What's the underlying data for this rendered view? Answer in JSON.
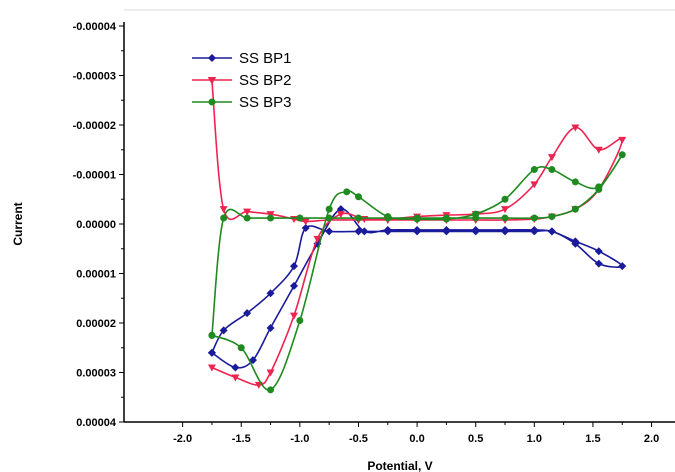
{
  "chart_data": {
    "type": "line",
    "xlabel": "Potential, V",
    "ylabel": "Current",
    "xlim": [
      -2.5,
      2.2
    ],
    "ylim": [
      -4e-05,
      4e-05
    ],
    "y_inverted": true,
    "x_ticks": [
      -2.0,
      -1.5,
      -1.0,
      -0.5,
      0.0,
      0.5,
      1.0,
      1.5,
      2.0
    ],
    "x_tick_labels": [
      "-2.0",
      "-1.5",
      "-1.0",
      "-0.5",
      "0.0",
      "0.5",
      "1.0",
      "1.5",
      "2.0"
    ],
    "y_ticks": [
      -4e-05,
      -3e-05,
      -2e-05,
      -1e-05,
      0.0,
      1e-05,
      2e-05,
      3e-05,
      4e-05
    ],
    "y_tick_labels": [
      "-0.00004",
      "-0.00003",
      "-0.00002",
      "-0.00001",
      "0.00000",
      "0.00001",
      "0.00002",
      "0.00003",
      "0.00004"
    ],
    "legend_position": "top-left",
    "grid": false,
    "series": [
      {
        "name": "SS BP1",
        "color": "#1a1a9c",
        "marker": "diamond",
        "x": [
          -1.75,
          -1.55,
          -1.4,
          -1.25,
          -1.05,
          -0.85,
          -0.65,
          -0.45,
          -0.25,
          0.0,
          0.25,
          0.5,
          0.75,
          1.0,
          1.15,
          1.35,
          1.55,
          1.75,
          1.55,
          1.35,
          1.15,
          1.0,
          0.75,
          0.5,
          0.25,
          0.0,
          -0.25,
          -0.5,
          -0.75,
          -0.95,
          -1.05,
          -1.25,
          -1.45,
          -1.65,
          -1.75
        ],
        "y": [
          2.6e-05,
          2.9e-05,
          2.75e-05,
          2.1e-05,
          1.25e-05,
          4e-06,
          -3e-06,
          1.5e-06,
          1.2e-06,
          1.2e-06,
          1.2e-06,
          1.2e-06,
          1.2e-06,
          1.2e-06,
          1.5e-06,
          3.5e-06,
          5.5e-06,
          8.5e-06,
          8e-06,
          4e-06,
          1.5e-06,
          1.5e-06,
          1.5e-06,
          1.5e-06,
          1.5e-06,
          1.5e-06,
          1.5e-06,
          1.5e-06,
          1.5e-06,
          8e-07,
          8.5e-06,
          1.4e-05,
          1.8e-05,
          2.15e-05,
          2.6e-05
        ]
      },
      {
        "name": "SS BP2",
        "color": "#ee2450",
        "marker": "triangle-down",
        "x": [
          -1.75,
          -1.55,
          -1.35,
          -1.25,
          -1.05,
          -0.85,
          -0.65,
          -0.45,
          -0.25,
          0.0,
          0.25,
          0.5,
          0.75,
          1.0,
          1.15,
          1.35,
          1.55,
          1.75,
          1.55,
          1.35,
          1.15,
          1.0,
          0.75,
          0.5,
          0.25,
          0.0,
          -0.25,
          -0.5,
          -0.75,
          -0.95,
          -1.05,
          -1.25,
          -1.45,
          -1.65,
          -1.75
        ],
        "y": [
          2.9e-05,
          3.1e-05,
          3.25e-05,
          3e-05,
          1.85e-05,
          3e-06,
          -2e-06,
          -1e-06,
          -1e-06,
          -1.5e-06,
          -1.8e-06,
          -2e-06,
          -3e-06,
          -8e-06,
          -1.35e-05,
          -1.95e-05,
          -1.5e-05,
          -1.7e-05,
          -7e-06,
          -3e-06,
          -1.5e-06,
          -1e-06,
          -8e-07,
          -8e-07,
          -8e-07,
          -8e-07,
          -8e-07,
          -8e-07,
          -8e-07,
          -5e-07,
          -1e-06,
          -2e-06,
          -2.5e-06,
          -3e-06,
          -2.9e-05
        ]
      },
      {
        "name": "SS BP3",
        "color": "#1f8a1f",
        "marker": "circle",
        "x": [
          -1.75,
          -1.5,
          -1.25,
          -1.0,
          -0.75,
          -0.6,
          -0.5,
          -0.25,
          0.0,
          0.25,
          0.5,
          0.75,
          1.0,
          1.15,
          1.35,
          1.55,
          1.75,
          1.55,
          1.35,
          1.15,
          1.0,
          0.75,
          0.5,
          0.25,
          0.0,
          -0.25,
          -0.5,
          -0.75,
          -1.0,
          -1.25,
          -1.45,
          -1.65,
          -1.75
        ],
        "y": [
          2.25e-05,
          2.5e-05,
          3.35e-05,
          1.95e-05,
          -3e-06,
          -6.5e-06,
          -5.5e-06,
          -1.5e-06,
          -1e-06,
          -1e-06,
          -2e-06,
          -5e-06,
          -1.1e-05,
          -1.1e-05,
          -8.5e-06,
          -7.5e-06,
          -1.4e-05,
          -7e-06,
          -3e-06,
          -1.5e-06,
          -1.2e-06,
          -1.2e-06,
          -1.2e-06,
          -1.2e-06,
          -1.2e-06,
          -1.2e-06,
          -1.2e-06,
          -1.2e-06,
          -1.2e-06,
          -1.2e-06,
          -1.2e-06,
          -1.2e-06,
          2.25e-05
        ]
      }
    ]
  }
}
